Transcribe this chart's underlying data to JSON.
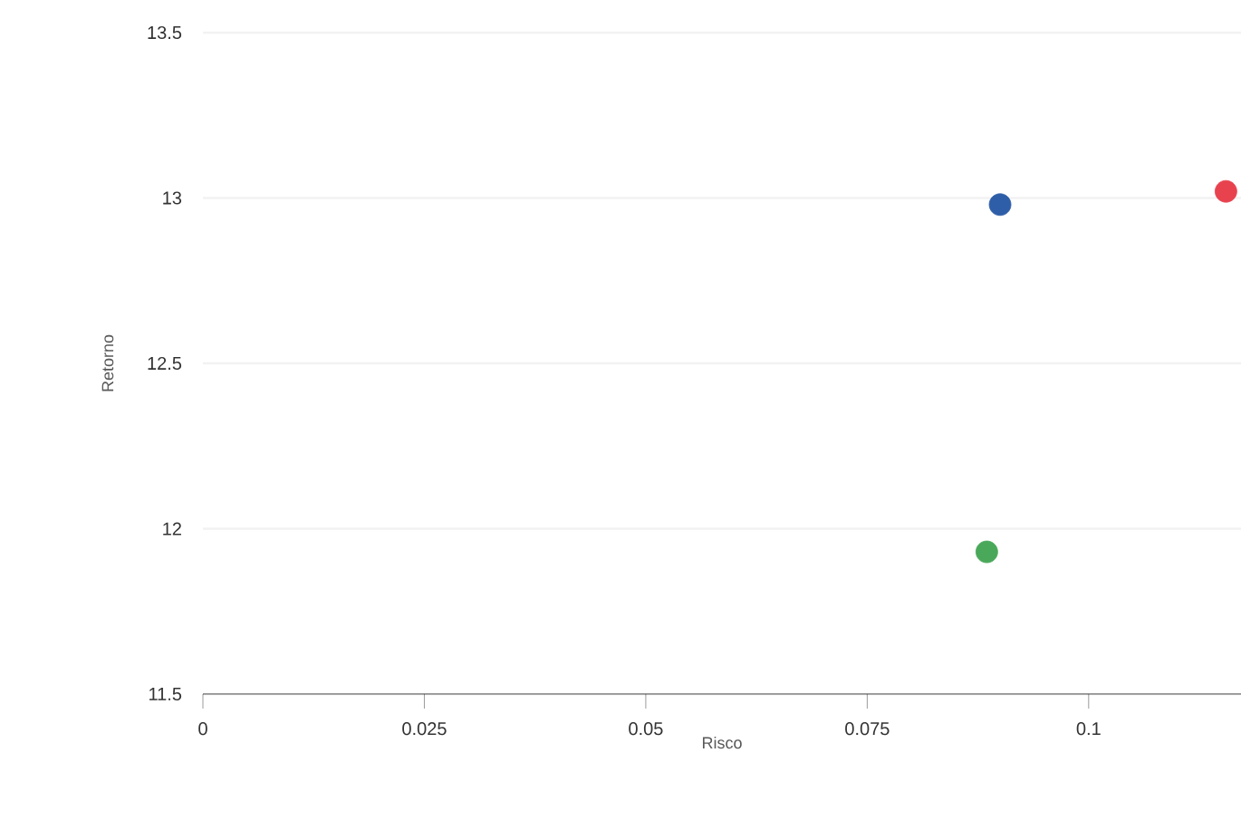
{
  "chart_data": {
    "type": "scatter",
    "xlabel": "Risco",
    "ylabel": "Retorno",
    "x": [
      0.09,
      0.1155,
      0.0885
    ],
    "series": [
      {
        "color": "#2f5ea8",
        "values": [
          12.98,
          null,
          null
        ]
      },
      {
        "color": "#e8424f",
        "values": [
          null,
          13.02,
          null
        ]
      },
      {
        "color": "#4aa85a",
        "values": [
          null,
          null,
          11.93
        ]
      }
    ],
    "xlim": [
      0,
      0.1172
    ],
    "ylim": [
      11.5,
      13.5
    ],
    "xticks": [
      0,
      0.025,
      0.05,
      0.075,
      0.1
    ],
    "yticks": [
      11.5,
      12,
      12.5,
      13,
      13.5
    ],
    "grid": "y",
    "marker": "circle"
  }
}
